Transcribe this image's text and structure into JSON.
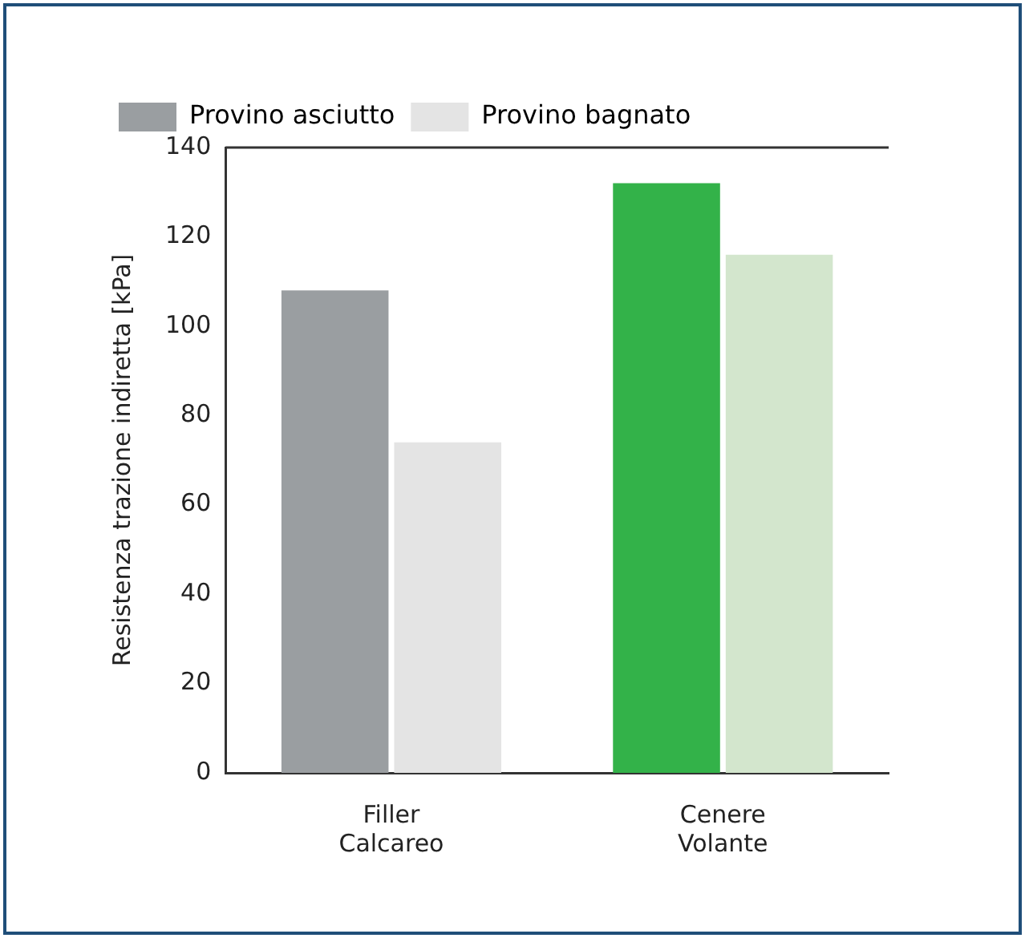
{
  "chart_data": {
    "type": "bar",
    "ylabel": "Resistenza trazione indiretta [kPa]",
    "categories": [
      "Filler Calcareo",
      "Cenere Volante"
    ],
    "series": [
      {
        "name": "Provino asciutto",
        "color": "#9a9ea1",
        "colors": [
          "#9a9ea1",
          "#33b249"
        ],
        "values": [
          108,
          132
        ]
      },
      {
        "name": "Provino bagnato",
        "color": "#e4e4e4",
        "colors": [
          "#e4e4e4",
          "#d3e6cd"
        ],
        "values": [
          74,
          116
        ]
      }
    ],
    "ylim": [
      0,
      140
    ],
    "yticks": [
      0,
      20,
      40,
      60,
      80,
      100,
      120,
      140
    ],
    "grid": false,
    "legend": "top"
  }
}
